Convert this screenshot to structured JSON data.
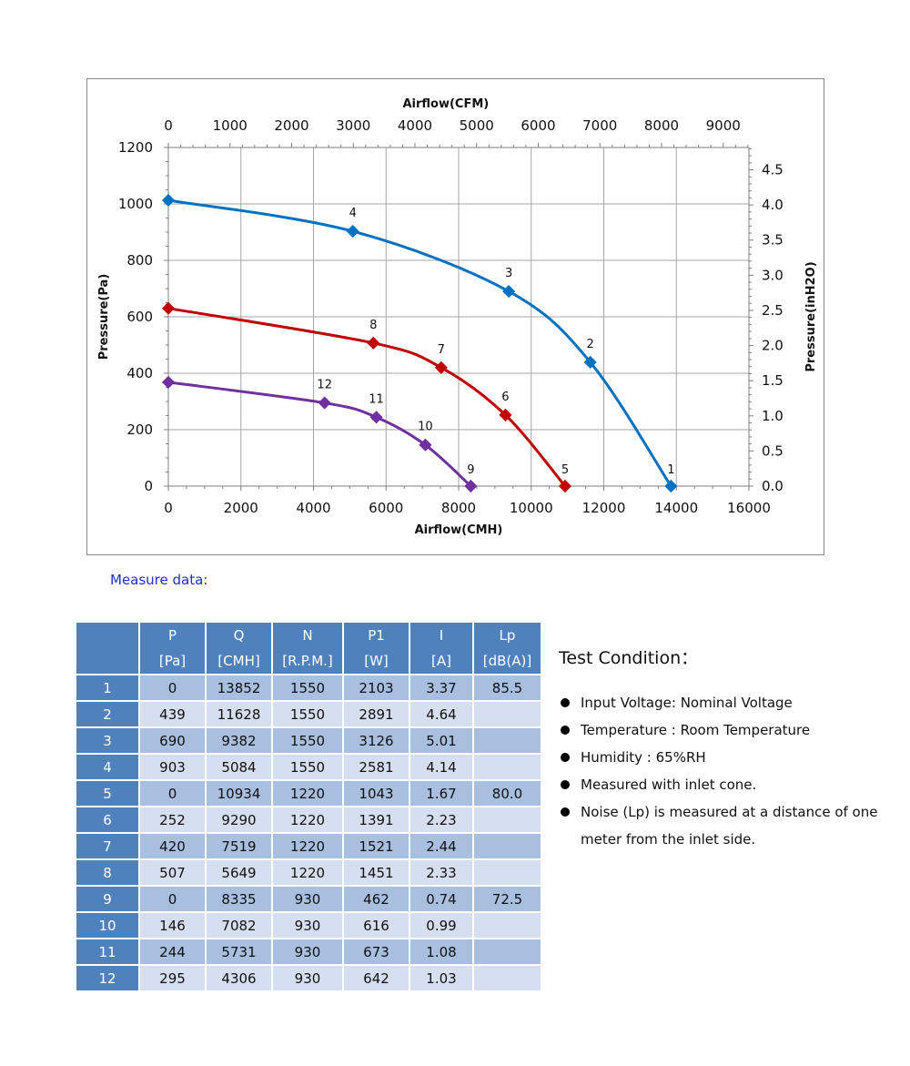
{
  "chart_data": {
    "type": "line",
    "title": "",
    "x_top_label": "Airflow(CFM)",
    "x_top_ticks": [
      "0",
      "1000",
      "2000",
      "3000",
      "4000",
      "5000",
      "6000",
      "7000",
      "8000",
      "9000"
    ],
    "xlabel": "Airflow(CMH)",
    "x_ticks": [
      "0",
      "2000",
      "4000",
      "6000",
      "8000",
      "10000",
      "12000",
      "14000",
      "16000"
    ],
    "xlim": [
      0,
      16000
    ],
    "ylabel": "Pressure(Pa)",
    "y_ticks": [
      "0",
      "200",
      "400",
      "600",
      "800",
      "1000",
      "1200"
    ],
    "ylim": [
      0,
      1200
    ],
    "y_right_label": "Pressure(inH2O)",
    "y_right_ticks": [
      "0.0",
      "0.5",
      "1.0",
      "1.5",
      "2.0",
      "2.5",
      "3.0",
      "3.5",
      "4.0",
      "4.5"
    ],
    "grid": true,
    "series": [
      {
        "color": "#0070c0",
        "points": [
          [
            0,
            1013
          ],
          [
            5084,
            903
          ],
          [
            9382,
            690
          ],
          [
            11628,
            439
          ],
          [
            13852,
            0
          ]
        ],
        "labels": [
          "",
          "4",
          "3",
          "2",
          "1"
        ]
      },
      {
        "color": "#c00000",
        "points": [
          [
            0,
            630
          ],
          [
            5649,
            507
          ],
          [
            7519,
            420
          ],
          [
            9290,
            252
          ],
          [
            10934,
            0
          ]
        ],
        "labels": [
          "",
          "8",
          "7",
          "6",
          "5"
        ]
      },
      {
        "color": "#7030a0",
        "points": [
          [
            0,
            368
          ],
          [
            4306,
            295
          ],
          [
            5731,
            244
          ],
          [
            7082,
            146
          ],
          [
            8335,
            0
          ]
        ],
        "labels": [
          "",
          "12",
          "11",
          "10",
          "9"
        ]
      }
    ]
  },
  "measure_title": "Measure data:",
  "table": {
    "headers": [
      {
        "top": "P",
        "bottom": "[Pa]"
      },
      {
        "top": "Q",
        "bottom": "[CMH]"
      },
      {
        "top": "N",
        "bottom": "[R.P.M.]"
      },
      {
        "top": "P1",
        "bottom": "[W]"
      },
      {
        "top": "I",
        "bottom": "[A]"
      },
      {
        "top": "Lp",
        "bottom": "[dB(A)]"
      }
    ],
    "rows": [
      [
        "1",
        "0",
        "13852",
        "1550",
        "2103",
        "3.37",
        "85.5"
      ],
      [
        "2",
        "439",
        "11628",
        "1550",
        "2891",
        "4.64",
        ""
      ],
      [
        "3",
        "690",
        "9382",
        "1550",
        "3126",
        "5.01",
        ""
      ],
      [
        "4",
        "903",
        "5084",
        "1550",
        "2581",
        "4.14",
        ""
      ],
      [
        "5",
        "0",
        "10934",
        "1220",
        "1043",
        "1.67",
        "80.0"
      ],
      [
        "6",
        "252",
        "9290",
        "1220",
        "1391",
        "2.23",
        ""
      ],
      [
        "7",
        "420",
        "7519",
        "1220",
        "1521",
        "2.44",
        ""
      ],
      [
        "8",
        "507",
        "5649",
        "1220",
        "1451",
        "2.33",
        ""
      ],
      [
        "9",
        "0",
        "8335",
        "930",
        "462",
        "0.74",
        "72.5"
      ],
      [
        "10",
        "146",
        "7082",
        "930",
        "616",
        "0.99",
        ""
      ],
      [
        "11",
        "244",
        "5731",
        "930",
        "673",
        "1.08",
        ""
      ],
      [
        "12",
        "295",
        "4306",
        "930",
        "642",
        "1.03",
        ""
      ]
    ]
  },
  "test_condition": {
    "title": "Test Condition：",
    "items": [
      "Input Voltage: Nominal Voltage",
      "Temperature : Room Temperature",
      "Humidity : 65%RH",
      "Measured with inlet cone.",
      "Noise (Lp) is measured at a distance of one meter from the inlet side."
    ]
  }
}
